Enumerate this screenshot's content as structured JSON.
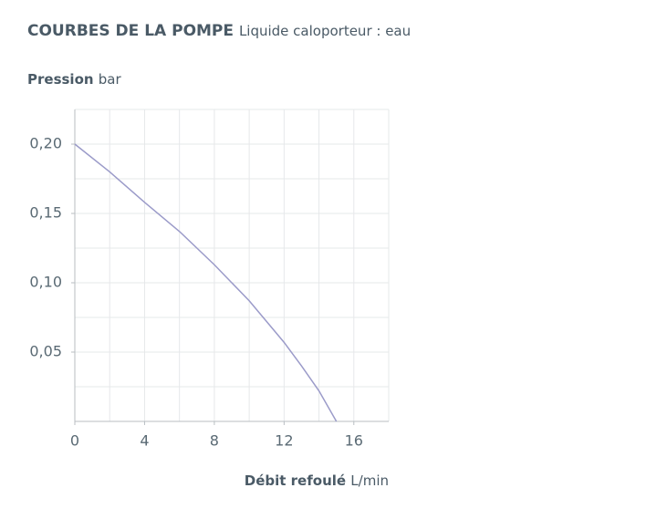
{
  "chart_data": {
    "type": "line",
    "title": "COURBES DE LA POMPE",
    "subtitle": "Liquide caloporteur : eau",
    "y_label": "Pression",
    "y_unit": "bar",
    "x_label": "Débit refoulé",
    "x_unit": "L/min",
    "series": [
      {
        "name": "Pression",
        "color": "#9b9bc9",
        "x": [
          0,
          2,
          4,
          6,
          8,
          10,
          12,
          13,
          14,
          15
        ],
        "values": [
          0.2,
          0.18,
          0.158,
          0.137,
          0.113,
          0.087,
          0.057,
          0.04,
          0.022,
          0
        ]
      }
    ],
    "xlim": [
      0,
      18
    ],
    "ylim": [
      0,
      0.225
    ],
    "xticks": [
      0,
      4,
      8,
      12,
      16
    ],
    "yticks": [
      {
        "value": 0.05,
        "label": "0,05"
      },
      {
        "value": 0.1,
        "label": "0,10"
      },
      {
        "value": 0.15,
        "label": "0,15"
      },
      {
        "value": 0.2,
        "label": "0,20"
      }
    ],
    "x_grid": [
      2,
      4,
      6,
      8,
      10,
      12,
      14,
      16,
      18
    ],
    "y_grid": [
      0.025,
      0.05,
      0.075,
      0.1,
      0.125,
      0.15,
      0.175,
      0.2,
      0.225
    ],
    "grid": true
  }
}
